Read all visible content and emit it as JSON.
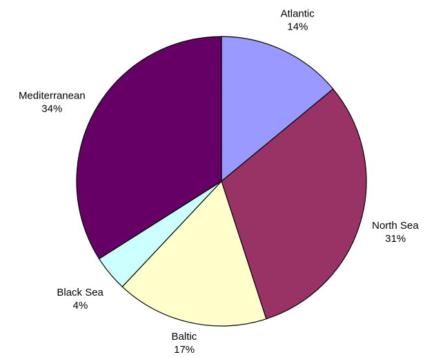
{
  "chart_data": {
    "type": "pie",
    "title": "",
    "start_angle_deg": 0,
    "direction": "clockwise",
    "slices": [
      {
        "label": "Atlantic",
        "percent_label": "14%",
        "value": 14,
        "color": "#9999ff"
      },
      {
        "label": "North Sea",
        "percent_label": "31%",
        "value": 31,
        "color": "#993366"
      },
      {
        "label": "Baltic",
        "percent_label": "17%",
        "value": 17,
        "color": "#ffffcc"
      },
      {
        "label": "Black Sea",
        "percent_label": "4%",
        "value": 4,
        "color": "#ccffff"
      },
      {
        "label": "Mediterranean",
        "percent_label": "34%",
        "value": 34,
        "color": "#660066"
      }
    ],
    "legend": "none",
    "outline_color": "#000000"
  }
}
